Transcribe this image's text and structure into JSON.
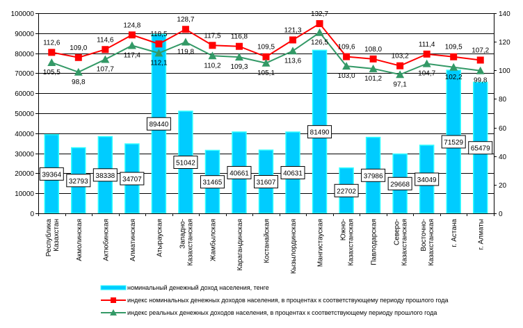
{
  "chart_data": {
    "type": "bar",
    "title": "",
    "xlabel": "",
    "ylabel": "",
    "ylim": [
      0,
      100000
    ],
    "y2lim": [
      0,
      140
    ],
    "grid": true,
    "legend_position": "bottom",
    "y_ticks": [
      "0",
      "10000",
      "20000",
      "30000",
      "40000",
      "50000",
      "60000",
      "70000",
      "80000",
      "90000",
      "100000"
    ],
    "y2_ticks": [
      "0",
      "20",
      "40",
      "60",
      "80",
      "100",
      "120",
      "140"
    ],
    "categories": [
      "Республика Казахстан",
      "Акмолинская",
      "Актюбинская",
      "Алматинская",
      "Атырауская",
      "Западно-Казахстанская",
      "Жамбылская",
      "Карагандинская",
      "Костанайская",
      "Кызылординская",
      "Мангистауская",
      "Южно-Казахстанская",
      "Павлодарская",
      "Северо-Казахстанская",
      "Восточно-Казахстанская",
      "г. Астана",
      "г. Алматы"
    ],
    "series": [
      {
        "name": "номинальный денежный доход населения, тенге",
        "type": "bar",
        "axis": "left",
        "color": "#00ccff",
        "values": [
          39364,
          32793,
          38338,
          34707,
          89440,
          51042,
          31465,
          40661,
          31607,
          40631,
          81490,
          22702,
          37986,
          29668,
          34049,
          71529,
          65479
        ],
        "labels": [
          "39364",
          "32793",
          "38338",
          "34707",
          "89440",
          "51042",
          "31465",
          "40661",
          "31607",
          "40631",
          "81490",
          "22702",
          "37986",
          "29668",
          "34049",
          "71529",
          "65479"
        ]
      },
      {
        "name": "индекс номинальных денежных доходов населения, в процентах к соответствующему периоду прошлого года",
        "type": "line",
        "axis": "right",
        "marker": "square",
        "color": "#ff0000",
        "values": [
          112.6,
          109.0,
          114.6,
          124.8,
          118.5,
          128.7,
          117.5,
          116.8,
          109.5,
          121.3,
          132.7,
          109.6,
          108.0,
          103.2,
          111.4,
          109.5,
          107.2
        ],
        "labels": [
          "112,6",
          "109,0",
          "114,6",
          "124,8",
          "118,5",
          "128,7",
          "117,5",
          "116,8",
          "109,5",
          "121,3",
          "132,7",
          "109,6",
          "108,0",
          "103,2",
          "111,4",
          "109,5",
          "107,2"
        ]
      },
      {
        "name": "индекс реальных денежных доходов населения, в процентах к соответствующему периоду прошлого года",
        "type": "line",
        "axis": "right",
        "marker": "triangle",
        "color": "#339966",
        "values": [
          105.5,
          98.8,
          107.7,
          117.4,
          112.1,
          119.8,
          110.2,
          109.3,
          105.1,
          113.6,
          126.5,
          103.0,
          101.2,
          97.1,
          104.7,
          102.2,
          99.8
        ],
        "labels": [
          "105,5",
          "98,8",
          "107,7",
          "117,4",
          "112,1",
          "119,8",
          "110,2",
          "109,3",
          "105,1",
          "113,6",
          "126,5",
          "103,0",
          "101,2",
          "97,1",
          "104,7",
          "102,2",
          "99,8"
        ]
      }
    ]
  }
}
